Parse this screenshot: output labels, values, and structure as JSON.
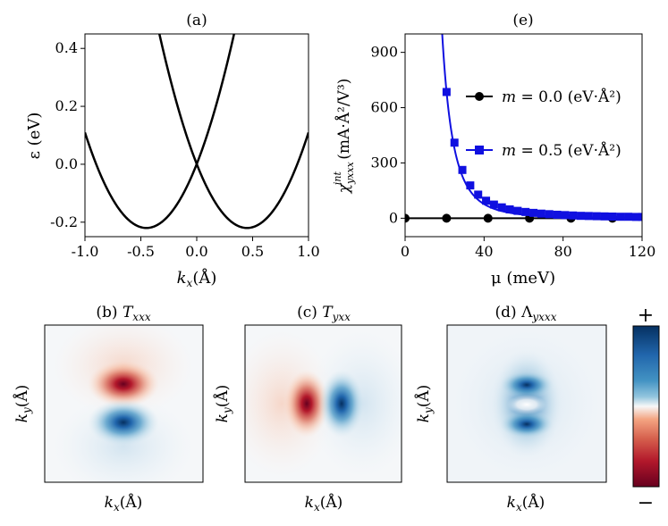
{
  "colors": {
    "line": "#000000",
    "series_black": "#000000",
    "series_blue": "#1010e0",
    "map_red": "#67001f",
    "map_blue": "#053061"
  },
  "chart_data": [
    {
      "id": "a",
      "type": "line",
      "title": "(a)",
      "xlabel": "k",
      "xlabel_sub": "x",
      "xlabel_unit": "(Å)",
      "ylabel": "ε (eV)",
      "xlim": [
        -1.0,
        1.0
      ],
      "ylim": [
        -0.25,
        0.45
      ],
      "xticks": [
        "-1.0",
        "-0.5",
        "0.0",
        "0.5",
        "1.0"
      ],
      "xtick_values": [
        -1.0,
        -0.5,
        0.0,
        0.5,
        1.0
      ],
      "yticks": [
        "-0.2",
        "0.0",
        "0.2",
        "0.4"
      ],
      "ytick_values": [
        -0.2,
        0.0,
        0.2,
        0.4
      ],
      "series": [
        {
          "name": "band-left",
          "vertex_k": -0.45,
          "vertex_e": -0.22,
          "curvature": 1.09
        },
        {
          "name": "band-right",
          "vertex_k": 0.45,
          "vertex_e": -0.22,
          "curvature": 1.09
        }
      ]
    },
    {
      "id": "e",
      "type": "line",
      "title": "(e)",
      "xlabel": "μ (meV)",
      "ylabel": "χ",
      "ylabel_sub": "yxxx",
      "ylabel_sup": "int",
      "ylabel_unit": " (mA·Å²/V³)",
      "xlim": [
        0,
        120
      ],
      "ylim": [
        -100,
        1000
      ],
      "xticks": [
        "0",
        "40",
        "80",
        "120"
      ],
      "xtick_values": [
        0,
        40,
        80,
        120
      ],
      "yticks": [
        "0",
        "300",
        "600",
        "900"
      ],
      "ytick_values": [
        0,
        300,
        600,
        900
      ],
      "series": [
        {
          "name": "m = 0.0 (eV·Å²)",
          "label_m": "m",
          "label_rest": " = 0.0 (eV·Å²)",
          "color": "#000000",
          "marker": "circle",
          "x": [
            0,
            21,
            42,
            63,
            84,
            105
          ],
          "y": [
            0,
            0,
            0,
            0,
            0,
            0
          ]
        },
        {
          "name": "m = 0.5 (eV·Å²)",
          "label_m": "m",
          "label_rest": " = 0.5 (eV·Å²)",
          "color": "#1010e0",
          "marker": "square",
          "x": [
            21,
            25,
            29,
            33,
            37,
            41,
            45,
            49,
            53,
            57,
            61,
            65,
            69,
            73,
            77,
            81,
            85,
            89,
            93,
            97,
            101,
            105,
            109,
            113,
            117,
            120
          ],
          "y": [
            685,
            410,
            262,
            178,
            128,
            95,
            74,
            59,
            48,
            40,
            34,
            29,
            25,
            22,
            19,
            17,
            15,
            13,
            12,
            11,
            10,
            9,
            8,
            8,
            7,
            7
          ]
        }
      ],
      "legend": "upper-right"
    },
    {
      "id": "b",
      "type": "heatmap",
      "title": "(b) ",
      "title_sym": "T",
      "title_sub": "xxx",
      "xlabel": "k",
      "xlabel_sub": "x",
      "xlabel_unit": "(Å)",
      "ylabel": "k",
      "ylabel_sub": "y",
      "ylabel_unit": "(Å)",
      "pattern": "red lobe above, blue lobe below"
    },
    {
      "id": "c",
      "type": "heatmap",
      "title": "(c) ",
      "title_sym": "T",
      "title_sub": "yxx",
      "xlabel": "k",
      "xlabel_sub": "x",
      "xlabel_unit": "(Å)",
      "ylabel": "k",
      "ylabel_sub": "y",
      "ylabel_unit": "(Å)",
      "pattern": "red lobe left, blue lobe right"
    },
    {
      "id": "d",
      "type": "heatmap",
      "title": "(d) ",
      "title_sym": "Λ",
      "title_sub": "yxxx",
      "xlabel": "k",
      "xlabel_sub": "x",
      "xlabel_unit": "(Å)",
      "ylabel": "k",
      "ylabel_sub": "y",
      "ylabel_unit": "(Å)",
      "pattern": "blue lobes above and below a light center"
    }
  ],
  "colorbar": {
    "top_label": "+",
    "bottom_label": "−"
  }
}
